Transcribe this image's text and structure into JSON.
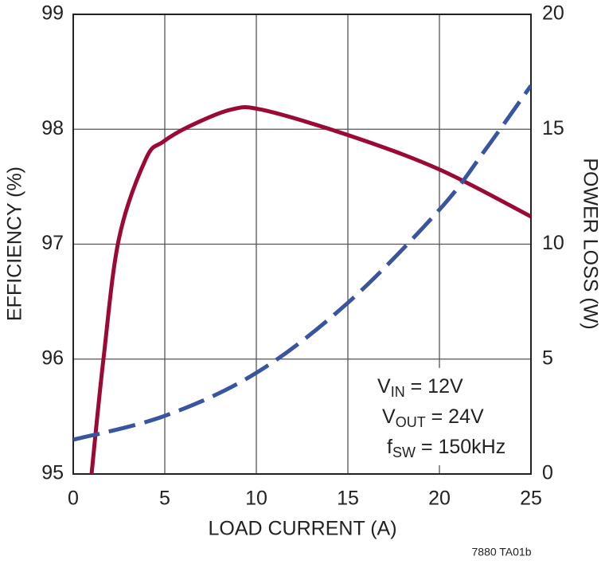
{
  "chart_data": {
    "type": "line",
    "x_label": "LOAD CURRENT (A)",
    "y_label": "EFFICIENCY (%)",
    "y2_label": "POWER LOSS (W)",
    "xlim": [
      0,
      25
    ],
    "xticks": [
      0,
      5,
      10,
      15,
      20,
      25
    ],
    "ylim": [
      95,
      99
    ],
    "yticks": [
      95,
      96,
      97,
      98,
      99
    ],
    "y2lim": [
      0,
      20
    ],
    "y2ticks": [
      0,
      5,
      10,
      15,
      20
    ],
    "grid": true,
    "series": [
      {
        "color": "#9b0a35",
        "dash": false,
        "x": [
          1,
          1.65,
          2.5,
          3.96,
          4.9,
          6.4,
          8.6,
          10.3,
          15,
          20,
          25
        ],
        "values": [
          95,
          96,
          97.05,
          97.74,
          97.89,
          98.03,
          98.17,
          98.17,
          97.95,
          97.65,
          97.24
        ]
      },
      {
        "color": "#3a55a0",
        "dash": true,
        "axis": "y2",
        "x": [
          0,
          5,
          10,
          15,
          20,
          22.5,
          25
        ],
        "values": [
          1.49,
          2.53,
          4.4,
          7.45,
          11.5,
          14.1,
          16.9
        ]
      }
    ],
    "annotations": [
      {
        "text": "V",
        "sub": "IN",
        "rest": " = 12V"
      },
      {
        "text": "V",
        "sub": "OUT",
        "rest": " = 24V"
      },
      {
        "text": "f",
        "sub": "SW",
        "rest": " = 150kHz"
      }
    ],
    "note": "7880 TA01b"
  }
}
